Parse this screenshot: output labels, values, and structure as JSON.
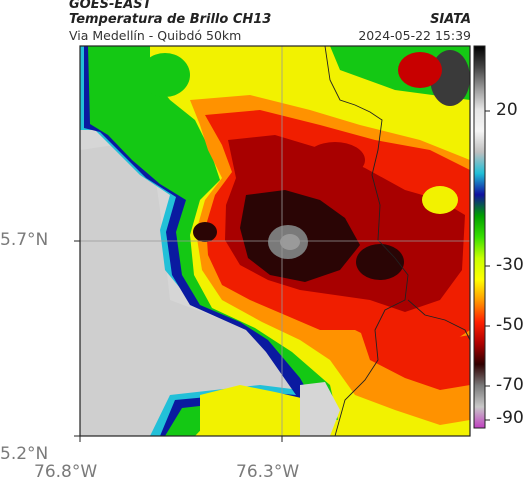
{
  "header": {
    "satellite": "GOES-EAST",
    "product": "Temperatura de Brillo CH13",
    "region": "Via Medellín - Quibdó 50km",
    "source": "SIATA",
    "timestamp": "2024-05-22 15:39"
  },
  "axes": {
    "lat_labels": [
      "5.7°N",
      "5.2°N"
    ],
    "lon_labels": [
      "76.8°W",
      "76.3°W"
    ]
  },
  "colorbar": {
    "ticks": [
      "20",
      "-30",
      "-50",
      "-70",
      "-90"
    ],
    "colors": [
      "#000000",
      "#444444",
      "#9a9a9a",
      "#e6e6e6",
      "#f5f5f5",
      "#bfbfbf",
      "#1fbfd6",
      "#1010a0",
      "#00a000",
      "#37e000",
      "#c8ff00",
      "#ffff00",
      "#ff9900",
      "#ff2000",
      "#b00000",
      "#300000",
      "#7a7a7a",
      "#c8c8c8",
      "#c040c0"
    ]
  },
  "map_colors": {
    "clear": "#d6d6d6",
    "ring_cyan": "#22c0d8",
    "ring_blue": "#0a1aa0",
    "green": "#14c814",
    "yellow": "#f2f200",
    "orange": "#ff9200",
    "red": "#f01e00",
    "dark_red": "#a80000",
    "core_black": "#1a0505",
    "core_gray": "#888888",
    "border_line": "#222222",
    "grid_line": "#999999"
  }
}
